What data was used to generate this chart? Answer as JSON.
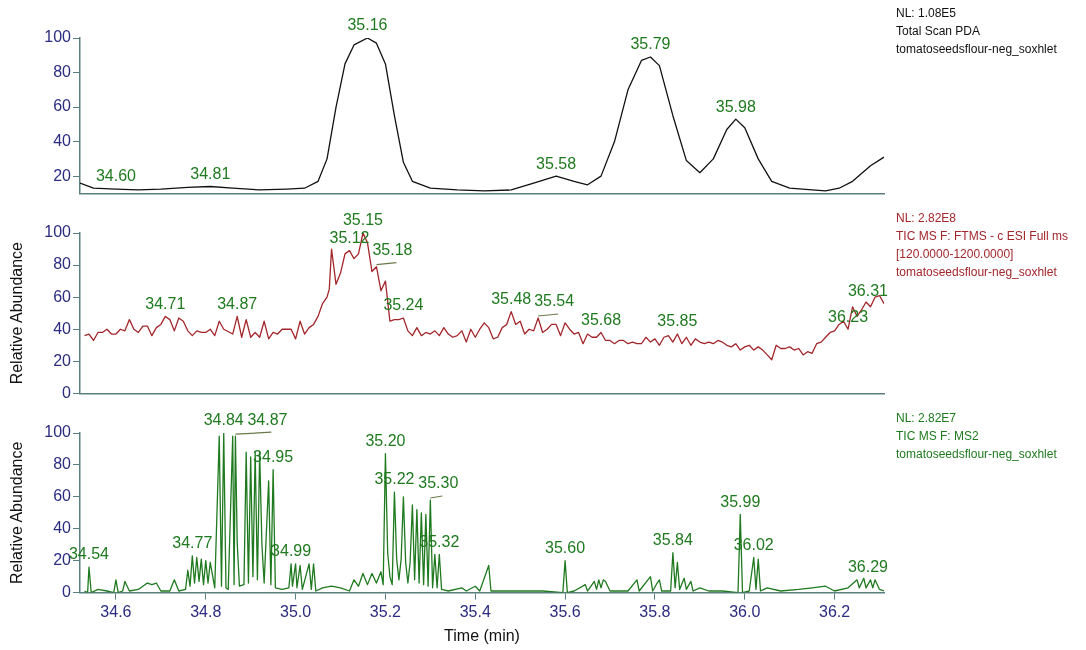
{
  "chart_data": [
    {
      "type": "line",
      "xlim": [
        34.52,
        36.31
      ],
      "ylim": [
        10,
        100
      ],
      "yticks": [
        20,
        40,
        60,
        80,
        100
      ],
      "tick_labels": "y",
      "grid": false,
      "legend": false,
      "marker": "none",
      "series": [
        {
          "color": "#111111",
          "x": [
            34.52,
            34.55,
            34.6,
            34.65,
            34.7,
            34.76,
            34.81,
            34.86,
            34.92,
            34.98,
            35.02,
            35.05,
            35.07,
            35.09,
            35.11,
            35.13,
            35.16,
            35.18,
            35.2,
            35.22,
            35.24,
            35.26,
            35.3,
            35.36,
            35.42,
            35.48,
            35.53,
            35.58,
            35.62,
            35.65,
            35.68,
            35.71,
            35.74,
            35.77,
            35.79,
            35.81,
            35.84,
            35.87,
            35.9,
            35.93,
            35.96,
            35.98,
            36.0,
            36.03,
            36.06,
            36.1,
            36.15,
            36.18,
            36.21,
            36.24,
            36.28,
            36.31
          ],
          "values": [
            16,
            13,
            12.5,
            12,
            12.5,
            13.5,
            14,
            13,
            12,
            12.5,
            13,
            17,
            30,
            60,
            85,
            96,
            100,
            97,
            85,
            55,
            28,
            17,
            13,
            12,
            11.5,
            12,
            16,
            20,
            17,
            15,
            20,
            40,
            70,
            87,
            89,
            84,
            55,
            29,
            22,
            30,
            47,
            53,
            48,
            30,
            17,
            13,
            12,
            11.5,
            13,
            17,
            26,
            31
          ]
        }
      ],
      "annotations": [
        {
          "text": "34.60",
          "x": 34.6,
          "y": 12.5
        },
        {
          "text": "34.81",
          "x": 34.81,
          "y": 14
        },
        {
          "text": "35.16",
          "x": 35.16,
          "y": 100
        },
        {
          "text": "35.58",
          "x": 35.58,
          "y": 20
        },
        {
          "text": "35.79",
          "x": 35.79,
          "y": 89
        },
        {
          "text": "35.98",
          "x": 35.98,
          "y": 53
        },
        "NL: 1.08E5",
        "Total Scan PDA",
        "tomatoseedsflour-neg_soxhlet"
      ]
    },
    {
      "type": "line",
      "xlim": [
        34.52,
        36.31
      ],
      "ylim": [
        0,
        100
      ],
      "yticks": [
        0,
        20,
        40,
        60,
        80,
        100
      ],
      "tick_labels": "y",
      "grid": false,
      "legend": false,
      "marker": "none",
      "ylabel": "Relative Abundance",
      "series": [
        {
          "color": "#a3262b",
          "x": [
            34.53,
            34.54,
            34.55,
            34.56,
            34.57,
            34.58,
            34.59,
            34.6,
            34.61,
            34.62,
            34.63,
            34.64,
            34.65,
            34.66,
            34.67,
            34.68,
            34.69,
            34.7,
            34.71,
            34.72,
            34.73,
            34.74,
            34.75,
            34.76,
            34.77,
            34.78,
            34.79,
            34.8,
            34.81,
            34.82,
            34.83,
            34.84,
            34.86,
            34.87,
            34.88,
            34.89,
            34.9,
            34.91,
            34.92,
            34.93,
            34.94,
            34.95,
            34.96,
            34.97,
            34.98,
            34.99,
            35.0,
            35.01,
            35.02,
            35.03,
            35.04,
            35.05,
            35.06,
            35.065,
            35.07,
            35.075,
            35.08,
            35.09,
            35.1,
            35.11,
            35.12,
            35.13,
            35.14,
            35.15,
            35.16,
            35.17,
            35.18,
            35.19,
            35.2,
            35.21,
            35.22,
            35.23,
            35.24,
            35.25,
            35.26,
            35.27,
            35.28,
            35.29,
            35.3,
            35.31,
            35.32,
            35.33,
            35.34,
            35.35,
            35.36,
            35.37,
            35.38,
            35.39,
            35.4,
            35.41,
            35.42,
            35.43,
            35.44,
            35.45,
            35.46,
            35.47,
            35.48,
            35.49,
            35.5,
            35.51,
            35.52,
            35.53,
            35.54,
            35.55,
            35.56,
            35.57,
            35.58,
            35.59,
            35.6,
            35.61,
            35.62,
            35.63,
            35.64,
            35.65,
            35.66,
            35.67,
            35.68,
            35.69,
            35.7,
            35.71,
            35.72,
            35.73,
            35.74,
            35.75,
            35.76,
            35.77,
            35.78,
            35.79,
            35.8,
            35.81,
            35.82,
            35.83,
            35.84,
            35.85,
            35.86,
            35.87,
            35.88,
            35.89,
            35.9,
            35.91,
            35.92,
            35.93,
            35.94,
            35.95,
            35.96,
            35.97,
            35.98,
            35.99,
            36.0,
            36.01,
            36.02,
            36.03,
            36.04,
            36.05,
            36.06,
            36.07,
            36.08,
            36.09,
            36.1,
            36.11,
            36.12,
            36.13,
            36.14,
            36.15,
            36.16,
            36.17,
            36.18,
            36.19,
            36.2,
            36.21,
            36.22,
            36.23,
            36.24,
            36.25,
            36.26,
            36.27,
            36.28,
            36.29,
            36.3,
            36.31
          ],
          "values": [
            36,
            37,
            33,
            38,
            38,
            40,
            37,
            37,
            40,
            39,
            46,
            40,
            38,
            42,
            42,
            36,
            41,
            43,
            48,
            46,
            39,
            47,
            45,
            39,
            36,
            39,
            38,
            38,
            40,
            36,
            45,
            40,
            37,
            48,
            35,
            46,
            35,
            38,
            35,
            45,
            34,
            38,
            37,
            40,
            40,
            40,
            34,
            45,
            37,
            41,
            43,
            48,
            56,
            58,
            60,
            65,
            90,
            68,
            75,
            87,
            89,
            84,
            87,
            100,
            94,
            76,
            79,
            64,
            70,
            45,
            46,
            46,
            47,
            39,
            36,
            41,
            36,
            38,
            37,
            39,
            36,
            41,
            37,
            35,
            36,
            39,
            32,
            40,
            35,
            40,
            44,
            41,
            34,
            35,
            41,
            43,
            51,
            43,
            45,
            37,
            40,
            39,
            47,
            38,
            40,
            43,
            43,
            36,
            44,
            40,
            37,
            38,
            31,
            37,
            35,
            35,
            38,
            33,
            33,
            31,
            33,
            33,
            31,
            32,
            31,
            31,
            35,
            32,
            34,
            30,
            35,
            36,
            32,
            37,
            31,
            35,
            30,
            34,
            32,
            31,
            32,
            31,
            33,
            32,
            30,
            29,
            31,
            27,
            29,
            30,
            27,
            29,
            27,
            24,
            21,
            30,
            28,
            28,
            29,
            27,
            28,
            24,
            26,
            25,
            31,
            32,
            35,
            38,
            39,
            43,
            45,
            40,
            54,
            48,
            52,
            57,
            54,
            60,
            61,
            56
          ]
        }
      ],
      "annotations": [
        {
          "text": "34.71",
          "x": 34.71,
          "y": 48
        },
        {
          "text": "34.87",
          "x": 34.87,
          "y": 48
        },
        {
          "text": "35.12",
          "x": 35.12,
          "y": 89
        },
        {
          "text": "35.15",
          "x": 35.15,
          "y": 100
        },
        {
          "text": "35.18",
          "x": 35.18,
          "y": 79
        },
        {
          "text": "35.24",
          "x": 35.24,
          "y": 47
        },
        {
          "text": "35.48",
          "x": 35.48,
          "y": 51
        },
        {
          "text": "35.54",
          "x": 35.54,
          "y": 47
        },
        {
          "text": "35.68",
          "x": 35.68,
          "y": 38
        },
        {
          "text": "35.85",
          "x": 35.85,
          "y": 37
        },
        {
          "text": "36.23",
          "x": 36.23,
          "y": 40
        },
        {
          "text": "36.31",
          "x": 36.31,
          "y": 56
        },
        "NL: 2.82E8",
        "TIC  MS  F: FTMS - c ESI Full ms [120.0000-1200.0000]",
        "tomatoseedsflour-neg_soxhlet"
      ]
    },
    {
      "type": "line",
      "xlim": [
        34.52,
        36.31
      ],
      "ylim": [
        0,
        100
      ],
      "yticks": [
        0,
        20,
        40,
        60,
        80,
        100
      ],
      "xticks": [
        {
          "value": 34.6,
          "label": "34.6"
        },
        {
          "value": 34.8,
          "label": "34.8"
        },
        {
          "value": 35,
          "label": "35.0"
        },
        {
          "value": 35.2,
          "label": "35.2"
        },
        {
          "value": 35.4,
          "label": "35.4"
        },
        {
          "value": 35.6,
          "label": "35.6"
        },
        {
          "value": 35.8,
          "label": "35.8"
        },
        {
          "value": 36,
          "label": "36.0"
        },
        {
          "value": 36.2,
          "label": "36.2"
        }
      ],
      "grid": false,
      "legend": false,
      "marker": "none",
      "ylabel": "Relative Abundance",
      "xlabel": "Time (min)",
      "series": [
        {
          "color": "#1f7a1f",
          "x": [
            34.53,
            34.537,
            34.54,
            34.545,
            34.56,
            34.58,
            34.595,
            34.6,
            34.605,
            34.615,
            34.62,
            34.63,
            34.65,
            34.66,
            34.67,
            34.68,
            34.69,
            34.7,
            34.72,
            34.73,
            34.74,
            34.755,
            34.76,
            34.765,
            34.77,
            34.775,
            34.78,
            34.785,
            34.79,
            34.795,
            34.8,
            34.805,
            34.81,
            34.82,
            34.83,
            34.835,
            34.84,
            34.845,
            34.85,
            34.86,
            34.863,
            34.866,
            34.87,
            34.875,
            34.885,
            34.89,
            34.895,
            34.9,
            34.905,
            34.91,
            34.915,
            34.92,
            34.925,
            34.93,
            34.94,
            34.945,
            34.95,
            34.955,
            34.97,
            34.985,
            34.99,
            34.993,
            35.0,
            35.003,
            35.01,
            35.015,
            35.03,
            35.035,
            35.04,
            35.045,
            35.06,
            35.08,
            35.1,
            35.12,
            35.13,
            35.14,
            35.15,
            35.16,
            35.17,
            35.18,
            35.19,
            35.195,
            35.2,
            35.205,
            35.21,
            35.215,
            35.22,
            35.225,
            35.23,
            35.235,
            35.24,
            35.245,
            35.25,
            35.255,
            35.26,
            35.265,
            35.27,
            35.275,
            35.28,
            35.285,
            35.29,
            35.295,
            35.3,
            35.305,
            35.31,
            35.315,
            35.32,
            35.325,
            35.34,
            35.37,
            35.38,
            35.4,
            35.41,
            35.43,
            35.435,
            35.46,
            35.5,
            35.55,
            35.595,
            35.6,
            35.605,
            35.62,
            35.645,
            35.65,
            35.665,
            35.67,
            35.675,
            35.68,
            35.685,
            35.69,
            35.7,
            35.74,
            35.76,
            35.765,
            35.79,
            35.795,
            35.805,
            35.81,
            35.815,
            35.835,
            35.84,
            35.845,
            35.85,
            35.855,
            35.865,
            35.87,
            35.88,
            35.885,
            35.9,
            35.92,
            35.95,
            35.985,
            35.99,
            35.995,
            36.01,
            36.02,
            36.025,
            36.03,
            36.035,
            36.05,
            36.08,
            36.12,
            36.15,
            36.18,
            36.2,
            36.23,
            36.25,
            36.255,
            36.265,
            36.27,
            36.28,
            36.285,
            36.29,
            36.3,
            36.31
          ],
          "values": [
            1,
            0,
            16,
            0,
            2,
            1,
            0,
            8,
            0,
            1,
            7,
            1,
            2,
            4,
            6,
            5,
            6,
            1,
            1,
            8,
            1,
            2,
            14,
            4,
            23,
            6,
            22,
            7,
            21,
            5,
            20,
            6,
            19,
            3,
            98,
            4,
            100,
            3,
            2,
            98,
            5,
            98,
            31,
            4,
            5,
            88,
            6,
            85,
            10,
            88,
            8,
            88,
            30,
            6,
            70,
            5,
            77,
            3,
            2,
            3,
            18,
            4,
            18,
            3,
            17,
            2,
            18,
            2,
            18,
            1,
            3,
            4,
            3,
            1,
            8,
            4,
            12,
            5,
            12,
            6,
            13,
            5,
            87,
            25,
            10,
            5,
            63,
            21,
            8,
            21,
            60,
            19,
            6,
            19,
            55,
            8,
            52,
            6,
            50,
            5,
            49,
            4,
            58,
            3,
            24,
            3,
            24,
            2,
            1,
            3,
            1,
            4,
            1,
            17,
            1,
            1,
            1,
            1,
            0,
            20,
            0,
            1,
            5,
            1,
            7,
            2,
            8,
            3,
            8,
            7,
            1,
            1,
            8,
            1,
            10,
            1,
            6,
            8,
            1,
            1,
            25,
            3,
            19,
            2,
            9,
            2,
            7,
            1,
            3,
            1,
            1,
            0,
            49,
            0,
            1,
            22,
            2,
            21,
            1,
            3,
            1,
            2,
            3,
            4,
            1,
            3,
            8,
            3,
            9,
            3,
            8,
            3,
            8,
            2,
            1
          ]
        }
      ],
      "annotations": [
        {
          "text": "34.54",
          "x": 34.54,
          "y": 16
        },
        {
          "text": "34.77",
          "x": 34.77,
          "y": 23
        },
        {
          "text": "34.84",
          "x": 34.84,
          "y": 100
        },
        {
          "text": "34.87",
          "x": 34.866,
          "y": 98
        },
        {
          "text": "34.95",
          "x": 34.95,
          "y": 77
        },
        {
          "text": "34.99",
          "x": 34.99,
          "y": 18
        },
        {
          "text": "35.20",
          "x": 35.2,
          "y": 87
        },
        {
          "text": "35.22",
          "x": 35.22,
          "y": 63
        },
        {
          "text": "35.30",
          "x": 35.3,
          "y": 58
        },
        {
          "text": "35.32",
          "x": 35.32,
          "y": 24
        },
        {
          "text": "35.60",
          "x": 35.6,
          "y": 20
        },
        {
          "text": "35.84",
          "x": 35.84,
          "y": 25
        },
        {
          "text": "35.99",
          "x": 35.99,
          "y": 49
        },
        {
          "text": "36.02",
          "x": 36.02,
          "y": 22
        },
        {
          "text": "36.29",
          "x": 36.29,
          "y": 8
        },
        "NL: 2.82E7",
        "TIC  MS  F: MS2",
        "tomatoseedsflour-neg_soxhlet"
      ]
    }
  ]
}
